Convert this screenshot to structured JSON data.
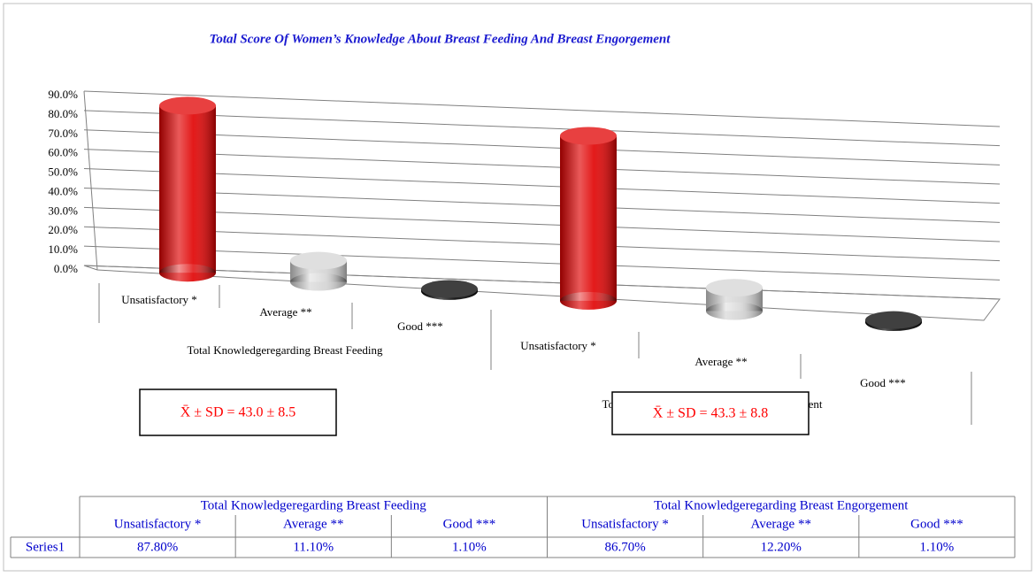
{
  "chart_data": {
    "type": "bar",
    "title": "Total Score Of Women’s Knowledge About Breast Feeding And Breast Engorgement",
    "groups": [
      "Total Knowledgeregarding Breast Feeding",
      "Total Knowledgeregarding Breast Engorgement"
    ],
    "categories": [
      "Unsatisfactory *",
      "Average **",
      "Good ***",
      "Unsatisfactory *",
      "Average **",
      "Good ***"
    ],
    "series": [
      {
        "name": "Series1",
        "colors": [
          "#e00000",
          "#d4d4d4",
          "#000000",
          "#e00000",
          "#d4d4d4",
          "#000000"
        ],
        "values": [
          87.8,
          11.1,
          1.1,
          86.7,
          12.2,
          1.1
        ],
        "value_labels": [
          "87.80%",
          "11.10%",
          "1.10%",
          "86.70%",
          "12.20%",
          "1.10%"
        ]
      }
    ],
    "ylim": [
      0,
      90
    ],
    "yticks": [
      {
        "value": 0,
        "label": "0.0%"
      },
      {
        "value": 10,
        "label": "10.0%"
      },
      {
        "value": 20,
        "label": "20.0%"
      },
      {
        "value": 30,
        "label": "30.0%"
      },
      {
        "value": 40,
        "label": "40.0%"
      },
      {
        "value": 50,
        "label": "50.0%"
      },
      {
        "value": 60,
        "label": "60.0%"
      },
      {
        "value": 70,
        "label": "70.0%"
      },
      {
        "value": 80,
        "label": "80.0%"
      },
      {
        "value": 90,
        "label": "90.0%"
      }
    ],
    "grid": true,
    "annotations": [
      "X̄ ± SD = 43.0 ± 8.5",
      "X̄ ± SD = 43.3 ± 8.8"
    ]
  }
}
